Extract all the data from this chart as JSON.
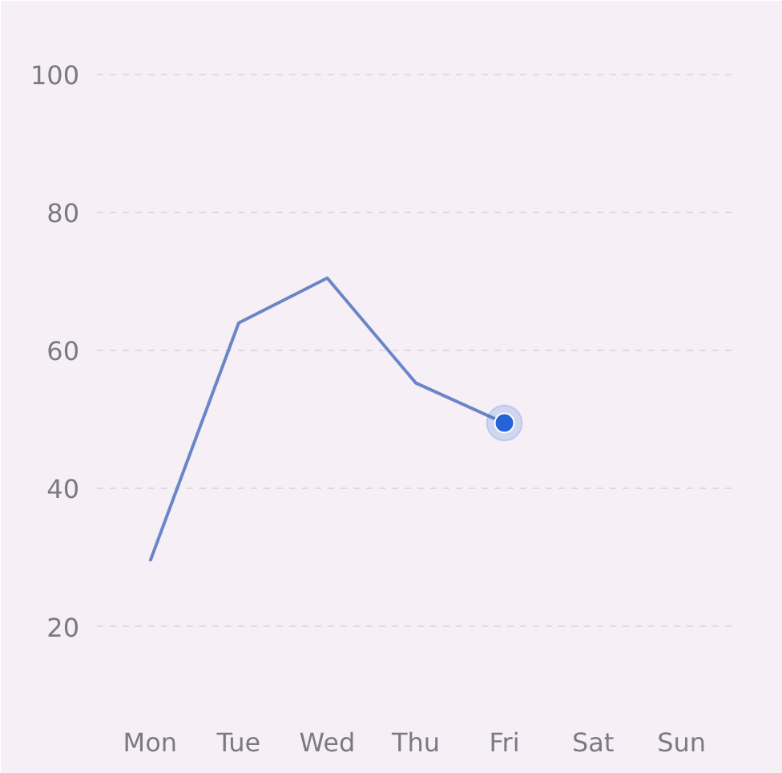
{
  "chart_data": {
    "type": "line",
    "categories": [
      "Mon",
      "Tue",
      "Wed",
      "Thu",
      "Fri",
      "Sat",
      "Sun"
    ],
    "series": [
      {
        "color": "#6a86c8",
        "values": [
          29.5,
          64,
          70.5,
          55.3,
          49.5,
          null,
          null
        ]
      },
      {
        "type": "scatter",
        "marker": "circle",
        "color": "#2563d6",
        "values": [
          null,
          null,
          null,
          null,
          49.5,
          null,
          null
        ]
      }
    ],
    "ylim": [
      8,
      106
    ],
    "yticks": [
      20,
      40,
      60,
      80,
      100
    ],
    "grid": "y",
    "line_style": "solid"
  }
}
